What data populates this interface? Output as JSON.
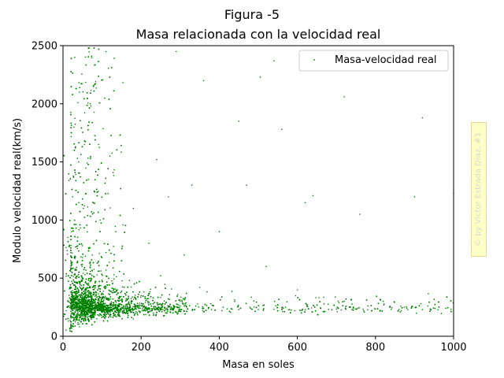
{
  "chart_data": {
    "type": "scatter",
    "suptitle": "Figura -5",
    "title": "Masa relacionada con la velocidad real",
    "xlabel": "Masa en soles",
    "ylabel": "Modulo velocidad real(km/s)",
    "xlim": [
      0,
      1000
    ],
    "ylim": [
      0,
      2500
    ],
    "xticks": [
      0,
      200,
      400,
      600,
      800,
      1000
    ],
    "yticks": [
      0,
      500,
      1000,
      1500,
      2000,
      2500
    ],
    "grid": false,
    "legend_position": "top-right",
    "series": [
      {
        "name": "Masa-velocidad real",
        "color": "#008000",
        "marker": "dot",
        "description_of_distribution": "dense cloud at low mass with velocities up to 2500 km/s, converging to about 230 km/s as mass increases",
        "points": [
          [
            8,
            220
          ],
          [
            12,
            300
          ],
          [
            15,
            260
          ],
          [
            18,
            420
          ],
          [
            20,
            650
          ],
          [
            22,
            900
          ],
          [
            25,
            1200
          ],
          [
            28,
            1800
          ],
          [
            30,
            2400
          ],
          [
            33,
            350
          ],
          [
            35,
            500
          ],
          [
            38,
            780
          ],
          [
            40,
            1500
          ],
          [
            42,
            2100
          ],
          [
            45,
            280
          ],
          [
            48,
            330
          ],
          [
            50,
            620
          ],
          [
            52,
            1100
          ],
          [
            55,
            1650
          ],
          [
            58,
            410
          ],
          [
            60,
            250
          ],
          [
            62,
            900
          ],
          [
            65,
            1350
          ],
          [
            68,
            300
          ],
          [
            70,
            2000
          ],
          [
            72,
            480
          ],
          [
            75,
            700
          ],
          [
            78,
            260
          ],
          [
            80,
            1250
          ],
          [
            85,
            350
          ],
          [
            90,
            560
          ],
          [
            95,
            1000
          ],
          [
            100,
            300
          ],
          [
            105,
            420
          ],
          [
            110,
            720
          ],
          [
            115,
            260
          ],
          [
            120,
            1550
          ],
          [
            125,
            380
          ],
          [
            130,
            240
          ],
          [
            135,
            900
          ],
          [
            140,
            310
          ],
          [
            150,
            650
          ],
          [
            160,
            270
          ],
          [
            170,
            480
          ],
          [
            180,
            1100
          ],
          [
            190,
            260
          ],
          [
            200,
            350
          ],
          [
            210,
            240
          ],
          [
            220,
            800
          ],
          [
            230,
            280
          ],
          [
            240,
            230
          ],
          [
            250,
            520
          ],
          [
            260,
            250
          ],
          [
            270,
            1200
          ],
          [
            280,
            240
          ],
          [
            300,
            300
          ],
          [
            310,
            700
          ],
          [
            320,
            235
          ],
          [
            340,
            260
          ],
          [
            350,
            420
          ],
          [
            360,
            240
          ],
          [
            380,
            230
          ],
          [
            400,
            900
          ],
          [
            410,
            250
          ],
          [
            420,
            235
          ],
          [
            440,
            300
          ],
          [
            450,
            230
          ],
          [
            470,
            1300
          ],
          [
            480,
            240
          ],
          [
            500,
            230
          ],
          [
            520,
            600
          ],
          [
            540,
            232
          ],
          [
            560,
            245
          ],
          [
            580,
            230
          ],
          [
            600,
            400
          ],
          [
            620,
            228
          ],
          [
            640,
            1210
          ],
          [
            660,
            240
          ],
          [
            680,
            232
          ],
          [
            700,
            235
          ],
          [
            720,
            300
          ],
          [
            740,
            230
          ],
          [
            760,
            1050
          ],
          [
            780,
            228
          ],
          [
            800,
            235
          ],
          [
            820,
            300
          ],
          [
            840,
            232
          ],
          [
            860,
            230
          ],
          [
            880,
            240
          ],
          [
            900,
            1200
          ],
          [
            920,
            230
          ],
          [
            940,
            235
          ],
          [
            960,
            228
          ],
          [
            980,
            240
          ],
          [
            1000,
            1230
          ],
          [
            360,
            2200
          ],
          [
            505,
            2230
          ],
          [
            540,
            2370
          ],
          [
            720,
            2060
          ],
          [
            920,
            1880
          ],
          [
            450,
            1850
          ],
          [
            560,
            1780
          ],
          [
            290,
            2450
          ],
          [
            80,
            2480
          ],
          [
            110,
            2450
          ],
          [
            240,
            1520
          ],
          [
            330,
            1300
          ],
          [
            620,
            1150
          ]
        ]
      }
    ]
  },
  "watermark": {
    "text": "© by Victor Estrada Diaz, #1"
  }
}
